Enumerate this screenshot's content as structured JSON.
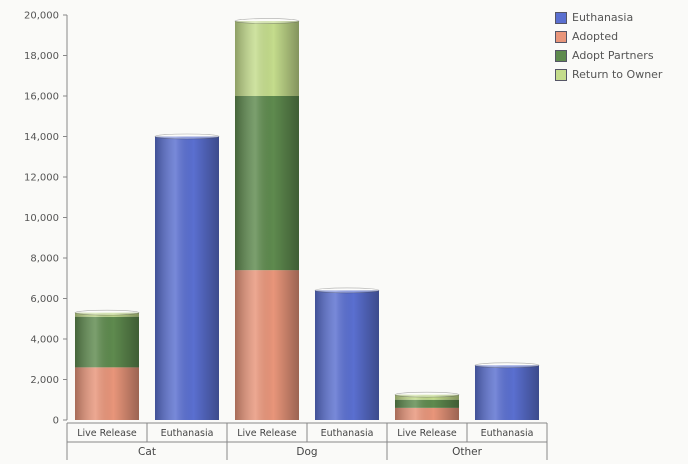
{
  "chart_data": {
    "type": "bar",
    "stacked": true,
    "title": "",
    "xlabel": "",
    "ylabel": "",
    "ylim": [
      0,
      20000
    ],
    "yticks": [
      "0",
      "2,000",
      "4,000",
      "6,000",
      "8,000",
      "10,000",
      "12,000",
      "14,000",
      "16,000",
      "18,000",
      "20,000"
    ],
    "yticks_values": [
      0,
      2000,
      4000,
      6000,
      8000,
      10000,
      12000,
      14000,
      16000,
      18000,
      20000
    ],
    "groups": [
      {
        "name": "Cat",
        "categories": [
          "Live Release",
          "Euthanasia"
        ]
      },
      {
        "name": "Dog",
        "categories": [
          "Live Release",
          "Euthanasia"
        ]
      },
      {
        "name": "Other",
        "categories": [
          "Live Release",
          "Euthanasia"
        ]
      }
    ],
    "categories": [
      "Live Release",
      "Euthanasia",
      "Live Release",
      "Euthanasia",
      "Live Release",
      "Euthanasia"
    ],
    "series": [
      {
        "name": "Euthanasia",
        "color": "#5a6fd0",
        "values": [
          0,
          14000,
          0,
          6400,
          0,
          2700
        ]
      },
      {
        "name": "Adopted",
        "color": "#e8957a",
        "values": [
          2600,
          0,
          7400,
          0,
          600,
          0
        ]
      },
      {
        "name": "Adopt Partners",
        "color": "#5e8a4e",
        "values": [
          2500,
          0,
          8600,
          0,
          400,
          0
        ]
      },
      {
        "name": "Return to Owner",
        "color": "#c4dc8c",
        "values": [
          200,
          0,
          3700,
          0,
          250,
          0
        ]
      }
    ],
    "grid": false,
    "legend_position": "top-right"
  }
}
